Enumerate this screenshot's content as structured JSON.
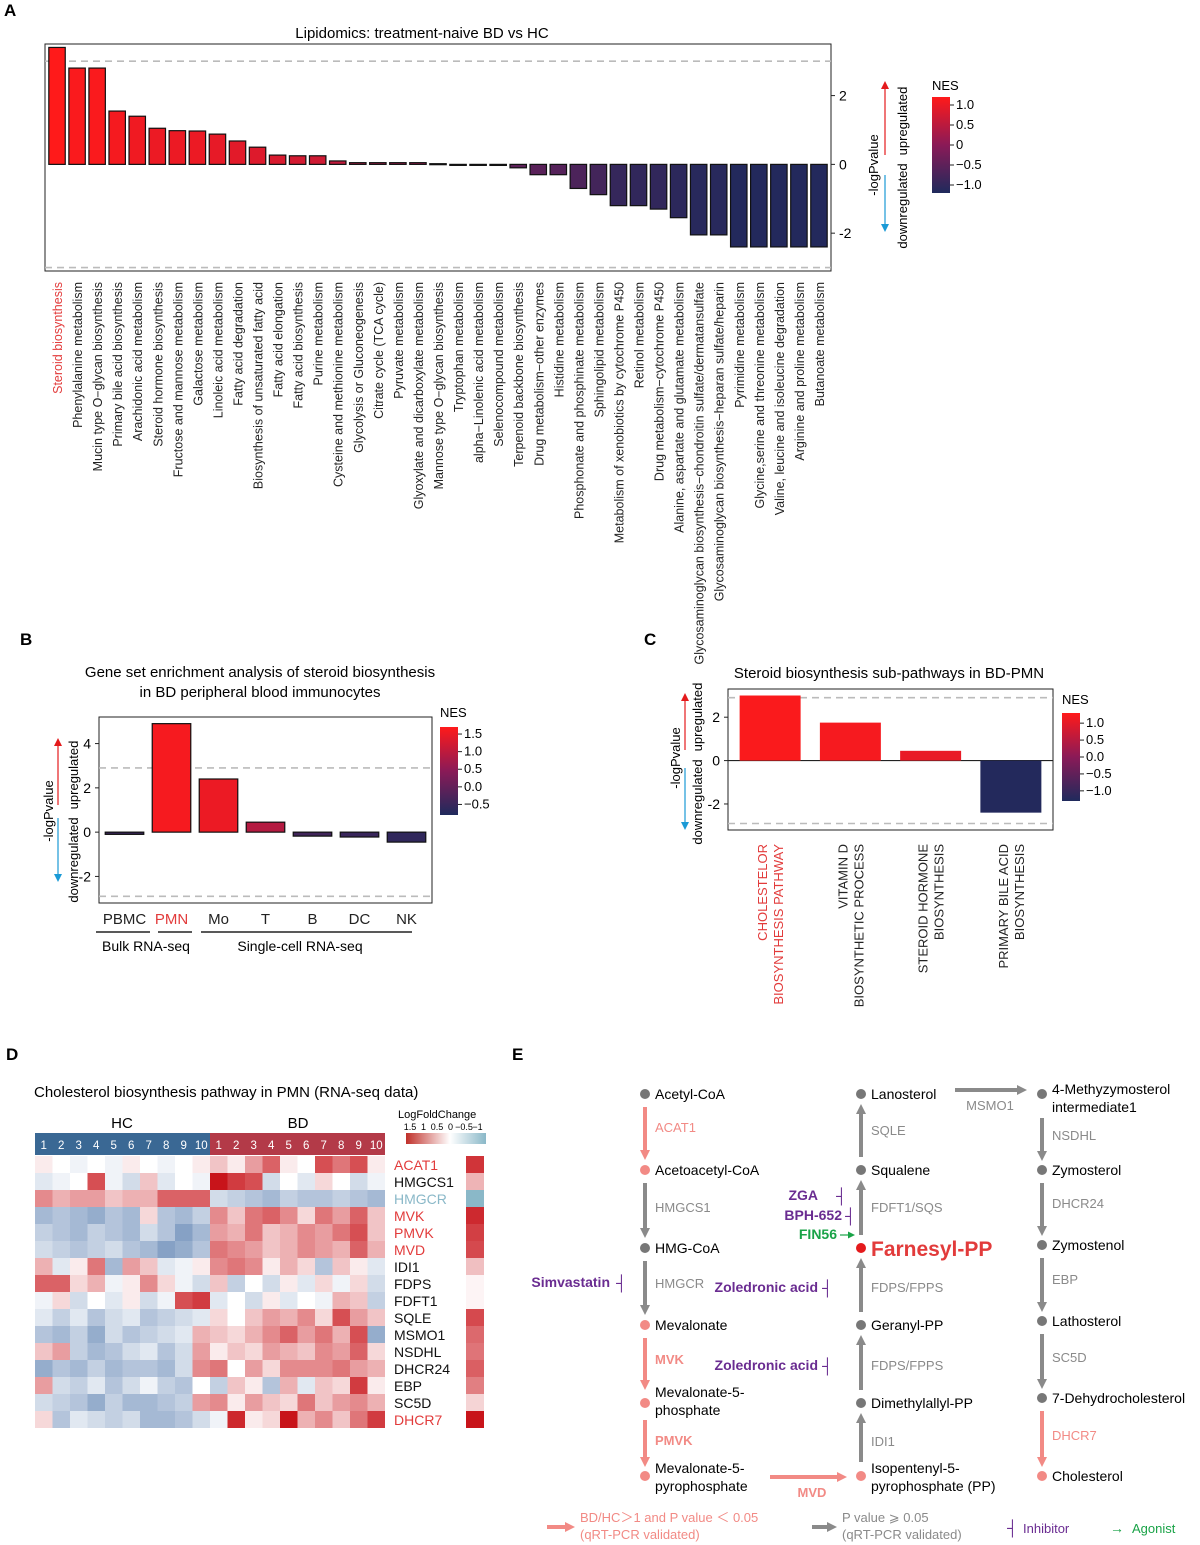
{
  "panels": {
    "a": "A",
    "b": "B",
    "c": "C",
    "d": "D",
    "e": "E"
  },
  "colors": {
    "up": "#e41a1c",
    "down": "#1f2a5c",
    "red_text": "#e23b3b",
    "blue_text": "#8ab8c8",
    "salmon": "#f28a85",
    "gray": "#8a8a8a",
    "purple": "#6a2c91",
    "green": "#19a347"
  },
  "chart_data": [
    {
      "id": "panel-a",
      "type": "bar",
      "title": "Lipidomics: treatment-naive BD vs HC",
      "ylabel_up": "upregulated",
      "ylabel_mid": "-logPvalue",
      "ylabel_down": "downregulated",
      "ylim": [
        -3.1,
        3.5
      ],
      "yticks": [
        -2,
        0,
        2
      ],
      "threshold": 3.0,
      "legend_title": "NES",
      "legend_ticks": [
        "1.0",
        "0.5",
        "0",
        "−0.5",
        "−1.0"
      ],
      "legend_range": [
        -1.2,
        1.2
      ],
      "highlight_index": 0,
      "categories": [
        "Steroid biosynthesis",
        "Phenylalanine metabolism",
        "Mucin type O−glycan biosynthesis",
        "Primary bile acid biosynthesis",
        "Arachidonic acid metabolism",
        "Steroid hormone biosynthesis",
        "Fructose and mannose metabolism",
        "Galactose metabolism",
        "Linoleic acid metabolism",
        "Fatty acid degradation",
        "Biosynthesis of unsaturated fatty acid",
        "Fatty acid elongation",
        "Fatty acid biosynthesis",
        "Purine metabolism",
        "Cysteine and methionine metabolism",
        "Glycolysis or Gluconeogenesis",
        "Citrate cycle (TCA cycle)",
        "Pyruvate metabolism",
        "Glyoxylate and dicarboxylate metabolism",
        "Mannose type O−glycan biosynthesis",
        "Tryptophan metabolism",
        "alpha−Linolenic acid metabolism",
        "Selenocompound metabolism",
        "Terpenoid backbone biosynthesis",
        "Drug metabolism−other enzymes",
        "Histidine metabolism",
        "Phosphonate and phosphinate metabolism",
        "Sphingolipid metabolism",
        "Metabolism of xenobiotics by cytochrome P450",
        "Retinol metabolism",
        "Drug metabolism−cytochrome P450",
        "Alanine, aspartate and glutamate metabolism",
        "Glycosaminoglycan biosynthesis−chondroitin sulfate/dermatansulfate",
        "Glycosaminoglycan biosynthesis−heparan sulfate/heparin",
        "Pyrimidine metabolism",
        "Glycine,serine and threonine metabolism",
        "Valine, leucine and isoleucine degradation",
        "Arginine and proline metabolism",
        "Butanoate metabolism"
      ],
      "values": [
        3.4,
        2.8,
        2.8,
        1.55,
        1.4,
        1.05,
        0.98,
        0.97,
        0.88,
        0.68,
        0.5,
        0.27,
        0.25,
        0.25,
        0.1,
        0.05,
        0.05,
        0.05,
        0.05,
        0.02,
        -0.01,
        -0.02,
        -0.03,
        -0.1,
        -0.3,
        -0.3,
        -0.7,
        -0.88,
        -1.2,
        -1.2,
        -1.3,
        -1.55,
        -2.05,
        -2.05,
        -2.4,
        -2.4,
        -2.4,
        -2.4,
        -2.4
      ],
      "nes": [
        1.2,
        1.15,
        1.15,
        1.1,
        1.05,
        1.0,
        1.0,
        1.0,
        0.95,
        0.9,
        0.85,
        0.8,
        0.75,
        0.7,
        0.55,
        0.4,
        0.3,
        0.25,
        0.2,
        0.0,
        -0.15,
        -0.3,
        -0.4,
        -0.5,
        -0.55,
        -0.6,
        -0.7,
        -0.8,
        -0.95,
        -1.0,
        -1.0,
        -1.05,
        -1.1,
        -1.1,
        -1.15,
        -1.15,
        -1.15,
        -1.15,
        -1.15
      ]
    },
    {
      "id": "panel-b",
      "type": "bar",
      "title_line1": "Gene set enrichment analysis of steroid biosynthesis",
      "title_line2": "in BD peripheral blood immunocytes",
      "ylabel_up": "upregulated",
      "ylabel_mid": "-logPvalue",
      "ylabel_down": "downregulated",
      "ylim": [
        -3.2,
        5.2
      ],
      "yticks": [
        -2,
        0,
        2,
        4
      ],
      "threshold": 2.9,
      "legend_title": "NES",
      "legend_ticks": [
        "1.5",
        "1.0",
        "0.5",
        "0.0",
        "−0.5"
      ],
      "legend_range": [
        -0.8,
        1.7
      ],
      "highlight_index": 1,
      "categories": [
        "PBMC",
        "PMN",
        "Mo",
        "T",
        "B",
        "DC",
        "NK"
      ],
      "values": [
        -0.1,
        4.9,
        2.4,
        0.45,
        -0.18,
        -0.22,
        -0.45
      ],
      "nes": [
        -0.5,
        1.6,
        1.5,
        0.9,
        -0.4,
        -0.5,
        -0.6
      ],
      "group_labels": [
        "Bulk RNA-seq",
        "Single-cell RNA-seq"
      ]
    },
    {
      "id": "panel-c",
      "type": "bar",
      "title": "Steroid biosynthesis sub-pathways in BD-PMN",
      "ylabel_up": "upregulated",
      "ylabel_mid": "-logPvalue",
      "ylabel_down": "downregulated",
      "ylim": [
        -3.2,
        3.3
      ],
      "yticks": [
        -2,
        0,
        2
      ],
      "threshold": 2.9,
      "legend_title": "NES",
      "legend_ticks": [
        "1.0",
        "0.5",
        "0.0",
        "−0.5",
        "−1.0"
      ],
      "legend_range": [
        -1.3,
        1.3
      ],
      "highlight_index": 0,
      "categories": [
        [
          "CHOLESTELOR",
          "BIOSYNTHESIS PATHWAY"
        ],
        [
          "VITAMIN D",
          "BIOSYNTHETIC PROCESS"
        ],
        [
          "STEROID HORMONE",
          "BIOSYNTHESIS"
        ],
        [
          "PRIMARY BILE ACID",
          "BIOSYNTHESIS"
        ]
      ],
      "values": [
        3.0,
        1.75,
        0.45,
        -2.4
      ],
      "nes": [
        1.25,
        1.2,
        1.05,
        -1.25
      ]
    },
    {
      "id": "panel-d",
      "type": "heatmap",
      "title": "Cholesterol biosynthesis pathway in PMN (RNA-seq data)",
      "group_hc": "HC",
      "group_bd": "BD",
      "columns": [
        "1",
        "2",
        "3",
        "4",
        "5",
        "6",
        "7",
        "8",
        "9",
        "10"
      ],
      "legend_title": "LogFoldChange",
      "legend_ticks": [
        "1.5",
        "1",
        "0.5",
        "0",
        "−0.5",
        "−1"
      ],
      "rows": [
        {
          "gene": "ACAT1",
          "style": "red",
          "fc": 0.95,
          "hc": [
            0.1,
            0.0,
            -0.1,
            0.0,
            -0.1,
            0.1,
            0.0,
            -0.1,
            0.0,
            0.1
          ],
          "bd": [
            0.3,
            0.1,
            0.5,
            0.8,
            0.1,
            0.0,
            0.9,
            0.7,
            0.9,
            0.1
          ]
        },
        {
          "gene": "HMGCS1",
          "style": "black",
          "fc": 0.35,
          "hc": [
            -0.2,
            -0.1,
            0.0,
            0.9,
            -0.1,
            -0.3,
            0.3,
            -0.2,
            0.0,
            -0.1
          ],
          "bd": [
            1.2,
            1.0,
            0.9,
            -0.3,
            0.0,
            -0.2,
            0.2,
            0.0,
            -0.3,
            -0.1
          ]
        },
        {
          "gene": "HMGCR",
          "style": "blue",
          "fc": -0.6,
          "hc": [
            0.6,
            0.4,
            0.5,
            0.5,
            0.3,
            0.4,
            0.4,
            0.8,
            0.8,
            0.8
          ],
          "bd": [
            -0.3,
            -0.4,
            -0.5,
            -0.6,
            -0.4,
            -0.5,
            -0.5,
            -0.4,
            -0.5,
            -0.6
          ]
        },
        {
          "gene": "MVK",
          "style": "red",
          "fc": 1.0,
          "hc": [
            -0.6,
            -0.5,
            -0.6,
            -0.7,
            -0.5,
            -0.6,
            0.2,
            -0.5,
            -0.6,
            -0.4
          ],
          "bd": [
            0.6,
            0.3,
            0.7,
            0.8,
            0.6,
            0.2,
            0.7,
            0.5,
            0.8,
            0.3
          ]
        },
        {
          "gene": "PMVK",
          "style": "red",
          "fc": 0.9,
          "hc": [
            -0.4,
            -0.5,
            -0.6,
            -0.4,
            -0.5,
            -0.6,
            -0.3,
            -0.5,
            -0.8,
            -0.6
          ],
          "bd": [
            0.5,
            0.4,
            0.7,
            0.3,
            0.4,
            0.6,
            0.5,
            0.7,
            0.9,
            0.3
          ]
        },
        {
          "gene": "MVD",
          "style": "red",
          "fc": 0.85,
          "hc": [
            -0.3,
            -0.4,
            -0.5,
            -0.4,
            -0.3,
            -0.5,
            -0.6,
            -0.8,
            -0.7,
            -0.5
          ],
          "bd": [
            0.7,
            0.6,
            0.5,
            0.3,
            0.4,
            0.6,
            0.5,
            0.4,
            0.8,
            0.4
          ]
        },
        {
          "gene": "IDI1",
          "style": "black",
          "fc": 0.3,
          "hc": [
            0.4,
            -0.2,
            0.1,
            0.7,
            -0.6,
            0.5,
            0.3,
            -0.2,
            -0.1,
            0.1
          ],
          "bd": [
            0.6,
            0.7,
            0.6,
            0.1,
            0.4,
            0.2,
            -0.5,
            0.3,
            0.1,
            -0.2
          ]
        },
        {
          "gene": "FDPS",
          "style": "black",
          "fc": 0.05,
          "hc": [
            0.8,
            0.8,
            0.2,
            0.4,
            -0.1,
            0.1,
            0.6,
            0.2,
            -0.1,
            -0.3
          ],
          "bd": [
            0.3,
            -0.4,
            0.0,
            -0.3,
            0.1,
            -0.2,
            0.2,
            -0.1,
            0.2,
            -0.3
          ]
        },
        {
          "gene": "FDFT1",
          "style": "black",
          "fc": 0.05,
          "hc": [
            -0.1,
            0.2,
            -0.3,
            0.0,
            -0.2,
            0.1,
            -0.3,
            -0.1,
            0.9,
            1.0
          ],
          "bd": [
            -0.2,
            0.0,
            -0.3,
            0.1,
            -0.2,
            0.0,
            -0.1,
            0.4,
            0.3,
            -0.4
          ]
        },
        {
          "gene": "SQLE",
          "style": "black",
          "fc": 0.85,
          "hc": [
            -0.2,
            -0.4,
            -0.2,
            -0.5,
            -0.3,
            -0.2,
            -0.5,
            -0.4,
            -0.3,
            -0.2
          ],
          "bd": [
            0.2,
            0.0,
            0.3,
            0.5,
            0.4,
            0.6,
            0.2,
            0.9,
            0.5,
            0.3
          ]
        },
        {
          "gene": "MSMO1",
          "style": "black",
          "fc": 0.7,
          "hc": [
            -0.5,
            -0.6,
            -0.4,
            -0.7,
            -0.3,
            -0.5,
            -0.4,
            -0.3,
            -0.2,
            0.4
          ],
          "bd": [
            0.3,
            0.2,
            0.4,
            0.6,
            0.8,
            0.5,
            0.7,
            0.4,
            0.9,
            -0.7
          ]
        },
        {
          "gene": "NSDHL",
          "style": "black",
          "fc": 0.65,
          "hc": [
            0.3,
            0.5,
            -0.4,
            -0.6,
            -0.5,
            -0.3,
            -0.2,
            -0.5,
            -0.3,
            0.5
          ],
          "bd": [
            0.1,
            0.3,
            0.2,
            0.5,
            0.4,
            0.3,
            0.6,
            0.5,
            0.8,
            0.2
          ]
        },
        {
          "gene": "DHCR24",
          "style": "black",
          "fc": 0.75,
          "hc": [
            -0.7,
            -0.5,
            -0.6,
            -0.4,
            -0.6,
            -0.5,
            -0.5,
            -0.6,
            -0.3,
            0.6
          ],
          "bd": [
            0.7,
            0.0,
            0.5,
            0.2,
            0.6,
            0.6,
            0.6,
            0.7,
            0.5,
            0.4
          ]
        },
        {
          "gene": "EBP",
          "style": "black",
          "fc": 0.6,
          "hc": [
            0.5,
            -0.3,
            -0.4,
            -0.2,
            -0.5,
            -0.3,
            -0.1,
            -0.4,
            -0.5,
            0.0
          ],
          "bd": [
            -0.4,
            0.3,
            0.1,
            -0.5,
            0.4,
            -0.2,
            0.3,
            0.2,
            1.0,
            0.1
          ]
        },
        {
          "gene": "SC5D",
          "style": "black",
          "fc": 0.2,
          "hc": [
            -0.3,
            -0.4,
            -0.5,
            -0.7,
            -0.4,
            -0.6,
            -0.6,
            -0.5,
            -0.4,
            0.5
          ],
          "bd": [
            0.6,
            0.1,
            0.5,
            0.3,
            0.2,
            0.7,
            0.3,
            0.5,
            0.6,
            0.4
          ]
        },
        {
          "gene": "DHCR7",
          "style": "red",
          "fc": 1.1,
          "hc": [
            0.2,
            -0.5,
            -0.2,
            -0.3,
            -0.4,
            -0.3,
            -0.6,
            -0.6,
            -0.5,
            -0.3
          ],
          "bd": [
            -0.1,
            1.1,
            0.1,
            0.2,
            1.2,
            0.4,
            0.6,
            0.3,
            0.7,
            1.0
          ]
        }
      ]
    }
  ],
  "panel_e": {
    "nodes": {
      "acetyl_coa": "Acetyl-CoA",
      "acetoacetyl_coa": "Acetoacetyl-CoA",
      "hmg_coa": "HMG-CoA",
      "mevalonate": "Mevalonate",
      "mev5p_1": "Mevalonate-5-",
      "mev5p_2": "phosphate",
      "mev5pp_1": "Mevalonate-5-",
      "mev5pp_2": "pyrophosphate",
      "lanosterol": "Lanosterol",
      "squalene": "Squalene",
      "farnesyl": "Farnesyl-PP",
      "geranyl": "Geranyl-PP",
      "dmapp": "Dimethylallyl-PP",
      "ipp_1": "Isopentenyl-5-",
      "ipp_2": "pyrophosphate (PP)",
      "methyzymo_1": "4-Methyzymosterol",
      "methyzymo_2": "intermediate1",
      "zymosterol": "Zymosterol",
      "zymostenol": "Zymostenol",
      "lathosterol": "Lathosterol",
      "dehydrochol": "7-Dehydrocholesterol",
      "cholesterol": "Cholesterol"
    },
    "enzymes": {
      "acat1": "ACAT1",
      "hmgcs1": "HMGCS1",
      "hmgcr": "HMGCR",
      "mvk": "MVK",
      "pmvk": "PMVK",
      "mvd": "MVD",
      "idi1": "IDI1",
      "fdps1": "FDPS/FPPS",
      "fdps2": "FDPS/FPPS",
      "fdft1": "FDFT1/SQS",
      "sqle": "SQLE",
      "msmo1": "MSMO1",
      "nsdhl": "NSDHL",
      "dhcr24": "DHCR24",
      "ebp": "EBP",
      "sc5d": "SC5D",
      "dhcr7": "DHCR7"
    },
    "drugs": {
      "simvastatin": "Simvastatin",
      "zoledronic1": "Zoledronic acid",
      "zoledronic2": "Zoledronic acid",
      "zga": "ZGA",
      "bph": "BPH-652",
      "fin56": "FIN56"
    },
    "legend": {
      "sig_1": "BD/HC＞1 and P value ＜ 0.05",
      "sig_2": "(qRT-PCR validated)",
      "ns_1": "P value ⩾ 0.05",
      "ns_2": "(qRT-PCR validated)",
      "inhibitor": "Inhibitor",
      "agonist": "Agonist",
      "inhibitor_glyph": "┤",
      "agonist_glyph": "→"
    }
  }
}
